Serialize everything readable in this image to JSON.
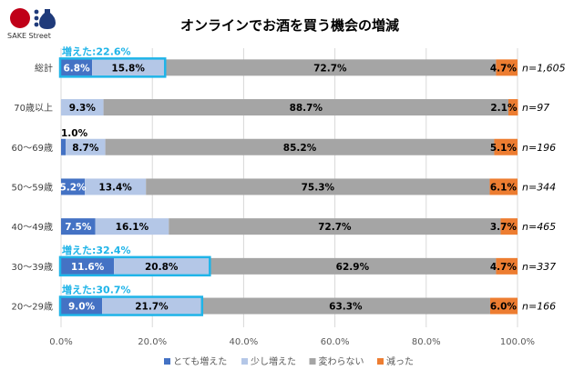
{
  "logo": {
    "text": "SAKE Street"
  },
  "chart_data": {
    "type": "bar",
    "orientation": "horizontal",
    "stacked": true,
    "title": "オンラインでお酒を買う機会の増減",
    "categories": [
      "総計",
      "70歳以上",
      "60～69歳",
      "50～59歳",
      "40～49歳",
      "30～39歳",
      "20～29歳"
    ],
    "sample_sizes": [
      "n=1,605",
      "n=97",
      "n=196",
      "n=344",
      "n=465",
      "n=337",
      "n=166"
    ],
    "series": [
      {
        "name": "とても増えた",
        "color": "#4472c4",
        "values": [
          6.8,
          0,
          1.0,
          5.2,
          7.5,
          11.6,
          9.0
        ]
      },
      {
        "name": "少し増えた",
        "color": "#b4c7e7",
        "values": [
          15.8,
          9.3,
          8.7,
          13.4,
          16.1,
          20.8,
          21.7
        ]
      },
      {
        "name": "変わらない",
        "color": "#a5a5a5",
        "values": [
          72.7,
          88.7,
          85.2,
          75.3,
          72.7,
          62.9,
          63.3
        ]
      },
      {
        "name": "減った",
        "color": "#ed7d31",
        "values": [
          4.7,
          2.1,
          5.1,
          6.1,
          3.7,
          4.7,
          6.0
        ]
      }
    ],
    "data_labels": [
      [
        "6.8%",
        "15.8%",
        "72.7%",
        "4.7%"
      ],
      [
        "",
        "9.3%",
        "88.7%",
        "2.1%"
      ],
      [
        "1.0%",
        "8.7%",
        "85.2%",
        "5.1%"
      ],
      [
        "5.2%",
        "13.4%",
        "75.3%",
        "6.1%"
      ],
      [
        "7.5%",
        "16.1%",
        "72.7%",
        "3.7%"
      ],
      [
        "11.6%",
        "20.8%",
        "62.9%",
        "4.7%"
      ],
      [
        "9.0%",
        "21.7%",
        "63.3%",
        "6.0%"
      ]
    ],
    "annotations": [
      {
        "row": 0,
        "text": "増えた:22.6%"
      },
      {
        "row": 5,
        "text": "増えた:32.4%"
      },
      {
        "row": 6,
        "text": "増えた:30.7%"
      }
    ],
    "annotation_color": "#1fb4e8",
    "xlim": [
      0,
      100
    ],
    "xticks": [
      "0.0%",
      "20.0%",
      "40.0%",
      "60.0%",
      "80.0%",
      "100.0%"
    ],
    "grid": true,
    "legend_position": "bottom"
  }
}
